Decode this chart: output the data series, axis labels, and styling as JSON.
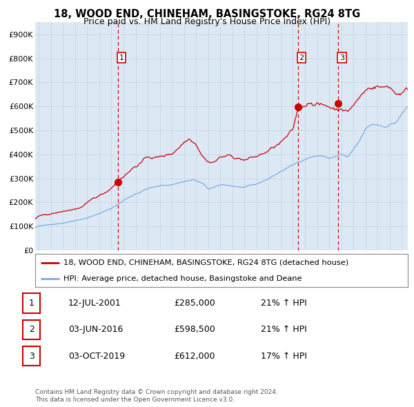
{
  "title": "18, WOOD END, CHINEHAM, BASINGSTOKE, RG24 8TG",
  "subtitle": "Price paid vs. HM Land Registry's House Price Index (HPI)",
  "background_color": "#ffffff",
  "plot_bg_color": "#dce9f5",
  "grid_color": "#c8d8e8",
  "sale_color": "#cc0000",
  "hpi_color": "#7aaadd",
  "dashed_line_color": "#cc0000",
  "legend_sale_label": "18, WOOD END, CHINEHAM, BASINGSTOKE, RG24 8TG (detached house)",
  "legend_hpi_label": "HPI: Average price, detached house, Basingstoke and Deane",
  "transactions": [
    {
      "num": 1,
      "date": "12-JUL-2001",
      "price": 285000,
      "hpi_pct": "21% ↑ HPI",
      "x": 2001.53
    },
    {
      "num": 2,
      "date": "03-JUN-2016",
      "price": 598500,
      "hpi_pct": "21% ↑ HPI",
      "x": 2016.42
    },
    {
      "num": 3,
      "date": "03-OCT-2019",
      "price": 612000,
      "hpi_pct": "17% ↑ HPI",
      "x": 2019.75
    }
  ],
  "footer_line1": "Contains HM Land Registry data © Crown copyright and database right 2024.",
  "footer_line2": "This data is licensed under the Open Government Licence v3.0.",
  "ylim": [
    0,
    950000
  ],
  "yticks": [
    0,
    100000,
    200000,
    300000,
    400000,
    500000,
    600000,
    700000,
    800000,
    900000
  ],
  "ytick_labels": [
    "£0",
    "£100K",
    "£200K",
    "£300K",
    "£400K",
    "£500K",
    "£600K",
    "£700K",
    "£800K",
    "£900K"
  ],
  "xlim_start": 1994.7,
  "xlim_end": 2025.5,
  "xticks": [
    1995,
    1996,
    1997,
    1998,
    1999,
    2000,
    2001,
    2002,
    2003,
    2004,
    2005,
    2006,
    2007,
    2008,
    2009,
    2010,
    2011,
    2012,
    2013,
    2014,
    2015,
    2016,
    2017,
    2018,
    2019,
    2020,
    2021,
    2022,
    2023,
    2024,
    2025
  ]
}
